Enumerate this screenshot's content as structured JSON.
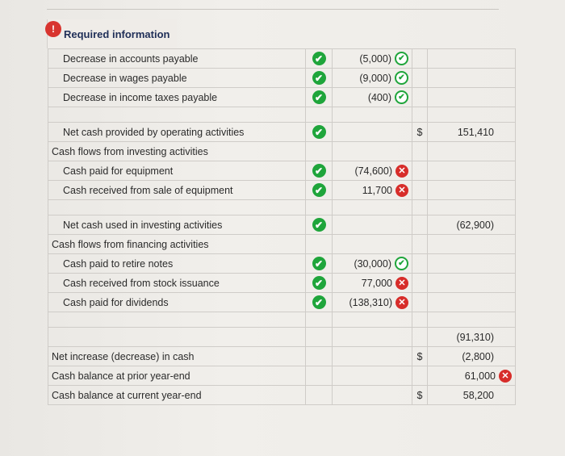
{
  "header": {
    "badge": "!",
    "title": "Required information"
  },
  "rows": [
    {
      "label": "Decrease in accounts payable",
      "indent": true,
      "mark": "check",
      "value": "(5,000)",
      "value_status": "check-outline",
      "dollar": "",
      "total": "",
      "total_status": ""
    },
    {
      "label": "Decrease in wages payable",
      "indent": true,
      "mark": "check",
      "value": "(9,000)",
      "value_status": "check-outline",
      "dollar": "",
      "total": "",
      "total_status": ""
    },
    {
      "label": "Decrease in income taxes payable",
      "indent": true,
      "mark": "check",
      "value": "(400)",
      "value_status": "check-outline",
      "dollar": "",
      "total": "",
      "total_status": ""
    },
    {
      "label": "",
      "indent": true,
      "mark": "",
      "value": "",
      "value_status": "",
      "dollar": "",
      "total": "",
      "total_status": "",
      "gap": true
    },
    {
      "label": "Net cash provided by operating activities",
      "indent": true,
      "mark": "check",
      "value": "",
      "value_status": "",
      "dollar": "$",
      "total": "151,410",
      "total_status": ""
    },
    {
      "label": "Cash flows from investing activities",
      "indent": false,
      "mark": "",
      "value": "",
      "value_status": "",
      "dollar": "",
      "total": "",
      "total_status": ""
    },
    {
      "label": "Cash paid for equipment",
      "indent": true,
      "mark": "check",
      "value": "(74,600)",
      "value_status": "x",
      "dollar": "",
      "total": "",
      "total_status": ""
    },
    {
      "label": "Cash received from sale of equipment",
      "indent": true,
      "mark": "check",
      "value": "11,700",
      "value_status": "x",
      "dollar": "",
      "total": "",
      "total_status": ""
    },
    {
      "label": "",
      "indent": true,
      "mark": "",
      "value": "",
      "value_status": "",
      "dollar": "",
      "total": "",
      "total_status": "",
      "gap": true
    },
    {
      "label": "Net cash used in investing activities",
      "indent": true,
      "mark": "check",
      "value": "",
      "value_status": "",
      "dollar": "",
      "total": "(62,900)",
      "total_status": ""
    },
    {
      "label": "Cash flows from financing activities",
      "indent": false,
      "mark": "",
      "value": "",
      "value_status": "",
      "dollar": "",
      "total": "",
      "total_status": ""
    },
    {
      "label": "Cash paid to retire notes",
      "indent": true,
      "mark": "check",
      "value": "(30,000)",
      "value_status": "check-outline",
      "dollar": "",
      "total": "",
      "total_status": ""
    },
    {
      "label": "Cash received from stock issuance",
      "indent": true,
      "mark": "check",
      "value": "77,000",
      "value_status": "x",
      "dollar": "",
      "total": "",
      "total_status": ""
    },
    {
      "label": "Cash paid for dividends",
      "indent": true,
      "mark": "check",
      "value": "(138,310)",
      "value_status": "x",
      "dollar": "",
      "total": "",
      "total_status": ""
    },
    {
      "label": "",
      "indent": true,
      "mark": "",
      "value": "",
      "value_status": "",
      "dollar": "",
      "total": "",
      "total_status": "",
      "gap": true
    },
    {
      "label": "",
      "indent": false,
      "mark": "",
      "value": "",
      "value_status": "",
      "dollar": "",
      "total": "(91,310)",
      "total_status": ""
    },
    {
      "label": "Net increase (decrease) in cash",
      "indent": false,
      "mark": "",
      "value": "",
      "value_status": "",
      "dollar": "$",
      "total": "(2,800)",
      "total_status": ""
    },
    {
      "label": "Cash balance at prior year-end",
      "indent": false,
      "mark": "",
      "value": "",
      "value_status": "",
      "dollar": "",
      "total": "61,000",
      "total_status": "x"
    },
    {
      "label": "Cash balance at current year-end",
      "indent": false,
      "mark": "",
      "value": "",
      "value_status": "",
      "dollar": "$",
      "total": "58,200",
      "total_status": ""
    }
  ],
  "icons": {
    "check": "✔",
    "x": "✕"
  },
  "colors": {
    "check_green": "#1fa53b",
    "error_red": "#d72d2a",
    "title_blue": "#1f2e57"
  }
}
